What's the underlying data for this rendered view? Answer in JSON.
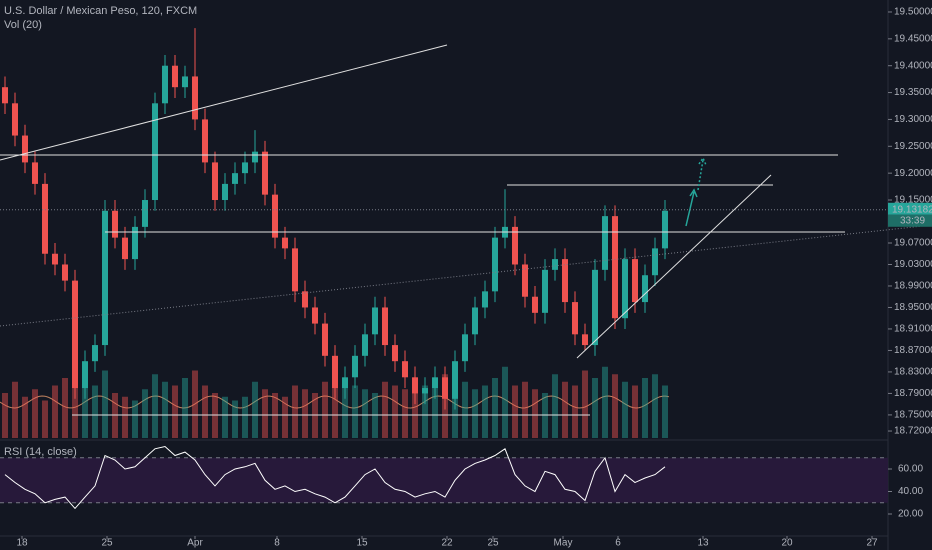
{
  "chart_data": {
    "type": "candlestick",
    "title": "U.S. Dollar / Mexican Peso, 120, FXCM",
    "open": [
      19.36,
      19.33,
      19.27,
      19.22,
      19.18,
      19.05,
      19.03,
      19.0,
      18.8,
      18.85,
      18.88,
      19.13,
      19.08,
      19.04,
      19.1,
      19.15,
      19.33,
      19.4,
      19.36,
      19.38,
      19.3,
      19.22,
      19.15,
      19.18,
      19.2,
      19.22,
      19.24,
      19.16,
      19.08,
      19.06,
      18.98,
      18.95,
      18.92,
      18.86,
      18.8,
      18.82,
      18.86,
      18.9,
      18.95,
      18.88,
      18.85,
      18.82,
      18.79,
      18.8,
      18.82,
      18.78,
      18.85,
      18.9,
      18.95,
      18.98,
      19.08,
      19.1,
      19.03,
      18.97,
      18.94,
      19.02,
      19.04,
      18.96,
      18.9,
      18.88,
      19.02,
      19.12,
      18.93,
      19.04,
      18.96,
      19.01,
      19.06
    ],
    "high": [
      19.38,
      19.35,
      19.29,
      19.24,
      19.2,
      19.07,
      19.05,
      19.02,
      18.87,
      18.9,
      19.15,
      19.15,
      19.1,
      19.12,
      19.17,
      19.35,
      19.42,
      19.42,
      19.4,
      19.47,
      19.32,
      19.24,
      19.2,
      19.22,
      19.24,
      19.28,
      19.26,
      19.18,
      19.1,
      19.08,
      19.0,
      18.97,
      18.94,
      18.88,
      18.84,
      18.88,
      18.92,
      18.97,
      18.97,
      18.9,
      18.87,
      18.84,
      18.82,
      18.84,
      18.84,
      18.87,
      18.92,
      18.97,
      19.0,
      19.1,
      19.17,
      19.12,
      19.05,
      18.99,
      19.04,
      19.06,
      19.06,
      18.98,
      18.92,
      19.04,
      19.14,
      19.14,
      19.06,
      19.06,
      19.03,
      19.08,
      19.15
    ],
    "low": [
      19.31,
      19.25,
      19.2,
      19.16,
      19.03,
      19.01,
      18.98,
      18.78,
      18.78,
      18.83,
      18.86,
      19.06,
      19.02,
      19.02,
      19.08,
      19.13,
      19.31,
      19.34,
      19.34,
      19.28,
      19.2,
      19.13,
      19.13,
      19.16,
      19.18,
      19.2,
      19.14,
      19.06,
      19.04,
      18.96,
      18.93,
      18.9,
      18.84,
      18.78,
      18.78,
      18.8,
      18.84,
      18.88,
      18.86,
      18.83,
      18.8,
      18.77,
      18.77,
      18.78,
      18.76,
      18.76,
      18.83,
      18.88,
      18.93,
      18.96,
      19.06,
      19.01,
      18.95,
      18.92,
      18.92,
      19.0,
      18.94,
      18.88,
      18.87,
      18.86,
      19.0,
      18.91,
      18.91,
      18.94,
      18.94,
      18.99,
      19.04
    ],
    "close": [
      19.33,
      19.27,
      19.22,
      19.18,
      19.05,
      19.03,
      19.0,
      18.8,
      18.85,
      18.88,
      19.13,
      19.08,
      19.04,
      19.1,
      19.15,
      19.33,
      19.4,
      19.36,
      19.38,
      19.3,
      19.22,
      19.15,
      19.18,
      19.2,
      19.22,
      19.24,
      19.16,
      19.08,
      19.06,
      18.98,
      18.95,
      18.92,
      18.86,
      18.8,
      18.82,
      18.86,
      18.9,
      18.95,
      18.88,
      18.85,
      18.82,
      18.79,
      18.8,
      18.82,
      18.78,
      18.85,
      18.9,
      18.95,
      18.98,
      19.08,
      19.1,
      19.03,
      18.97,
      18.94,
      19.02,
      19.04,
      18.96,
      18.9,
      18.88,
      19.02,
      19.12,
      18.93,
      19.04,
      18.96,
      19.01,
      19.06,
      19.13
    ],
    "up_color": "#26a69a",
    "down_color": "#ef5350",
    "xlim": [
      0,
      88.8
    ],
    "ylim": [
      18.7033,
      19.5223
    ],
    "xticks": [
      {
        "value": 2.2,
        "label": "18"
      },
      {
        "value": 10.7,
        "label": "25"
      },
      {
        "value": 19.5,
        "label": "Apr"
      },
      {
        "value": 27.7,
        "label": "8"
      },
      {
        "value": 36.2,
        "label": "15"
      },
      {
        "value": 44.7,
        "label": "22"
      },
      {
        "value": 49.3,
        "label": "25"
      },
      {
        "value": 56.3,
        "label": "May"
      },
      {
        "value": 61.8,
        "label": "6"
      },
      {
        "value": 70.3,
        "label": "13"
      },
      {
        "value": 78.7,
        "label": "20"
      },
      {
        "value": 87.2,
        "label": "27"
      }
    ],
    "yticks": [
      {
        "value": 19.5,
        "label": "19.50000"
      },
      {
        "value": 19.45,
        "label": "19.45000"
      },
      {
        "value": 19.4,
        "label": "19.40000"
      },
      {
        "value": 19.35,
        "label": "19.35000"
      },
      {
        "value": 19.3,
        "label": "19.30000"
      },
      {
        "value": 19.25,
        "label": "19.25000"
      },
      {
        "value": 19.2,
        "label": "19.20000"
      },
      {
        "value": 19.15,
        "label": "19.15000"
      },
      {
        "value": 19.07,
        "label": "19.07000"
      },
      {
        "value": 19.03,
        "label": "19.03000"
      },
      {
        "value": 18.99,
        "label": "18.99000"
      },
      {
        "value": 18.95,
        "label": "18.95000"
      },
      {
        "value": 18.91,
        "label": "18.91000"
      },
      {
        "value": 18.87,
        "label": "18.87000"
      },
      {
        "value": 18.83,
        "label": "18.83000"
      },
      {
        "value": 18.79,
        "label": "18.79000"
      },
      {
        "value": 18.75,
        "label": "18.75000"
      },
      {
        "value": 18.72,
        "label": "18.72000"
      }
    ],
    "last_price": {
      "value": 19.13182,
      "label": "19.13182"
    },
    "countdown": "33:39",
    "volume": {
      "title": "Vol (20)",
      "vlim": [
        0,
        140
      ],
      "values": [
        60,
        75,
        55,
        65,
        50,
        70,
        80,
        95,
        85,
        70,
        90,
        60,
        55,
        50,
        65,
        85,
        75,
        70,
        80,
        90,
        70,
        60,
        55,
        50,
        55,
        75,
        65,
        60,
        55,
        70,
        65,
        60,
        75,
        85,
        80,
        70,
        65,
        60,
        75,
        70,
        65,
        80,
        70,
        75,
        85,
        70,
        75,
        65,
        70,
        80,
        95,
        70,
        75,
        65,
        60,
        85,
        75,
        70,
        90,
        80,
        95,
        85,
        75,
        70,
        80,
        85,
        70
      ]
    },
    "rsi": {
      "title": "RSI (14, close)",
      "color": "#ffffff",
      "ylim": [
        -3.1,
        84.9
      ],
      "bands": [
        30,
        70
      ],
      "yticks": [
        {
          "value": 60,
          "label": "60.00"
        },
        {
          "value": 40,
          "label": "40.00"
        },
        {
          "value": 20,
          "label": "20.00"
        }
      ],
      "values": [
        55,
        48,
        42,
        38,
        30,
        33,
        35,
        25,
        35,
        45,
        72,
        68,
        60,
        62,
        70,
        78,
        80,
        72,
        75,
        68,
        55,
        45,
        55,
        60,
        62,
        65,
        50,
        42,
        45,
        40,
        42,
        38,
        35,
        30,
        35,
        45,
        55,
        60,
        48,
        42,
        40,
        35,
        38,
        40,
        35,
        50,
        60,
        65,
        68,
        72,
        78,
        55,
        45,
        40,
        58,
        55,
        42,
        40,
        32,
        58,
        70,
        40,
        55,
        48,
        52,
        55,
        62
      ]
    }
  }
}
